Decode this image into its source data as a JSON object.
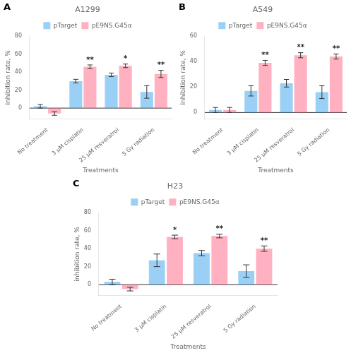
{
  "chart_data": [
    {
      "type": "bar",
      "label": "A",
      "title": "A1299",
      "xlabel": "Treatments",
      "ylabel": "inhibition rate, %",
      "categories": [
        "No treatment",
        "3 µM cisplatin",
        "25 µM resveratrol",
        "5 Gy radiation"
      ],
      "series": [
        {
          "name": "pTarget",
          "values": [
            2,
            30,
            37,
            18
          ],
          "errors": [
            2,
            2,
            2,
            7
          ]
        },
        {
          "name": "pE9NS.G45α",
          "values": [
            -6,
            46,
            47,
            38
          ],
          "errors": [
            2,
            2,
            2,
            4
          ],
          "annotations": [
            null,
            "**",
            "*",
            "**"
          ]
        }
      ],
      "ylim": [
        -12,
        80
      ],
      "yticks": [
        0,
        20,
        40,
        60,
        80
      ],
      "grid": false,
      "legend": "top"
    },
    {
      "type": "bar",
      "label": "B",
      "title": "A549",
      "xlabel": "Treatments",
      "ylabel": "inhibition rate, %",
      "categories": [
        "No treatment",
        "3 µM cisplatin",
        "25 µM resveratrol",
        "5 Gy radiation"
      ],
      "series": [
        {
          "name": "pTarget",
          "values": [
            2,
            17,
            23,
            16
          ],
          "errors": [
            2,
            4,
            3,
            5
          ]
        },
        {
          "name": "pE9NS.G45α",
          "values": [
            2,
            39,
            45,
            44
          ],
          "errors": [
            2,
            2,
            2,
            2
          ],
          "annotations": [
            null,
            "**",
            "**",
            "**"
          ]
        }
      ],
      "ylim": [
        -5,
        60
      ],
      "yticks": [
        0,
        20,
        40,
        60
      ],
      "grid": false,
      "legend": "top"
    },
    {
      "type": "bar",
      "label": "C",
      "title": "H23",
      "xlabel": "Treatments",
      "ylabel": "inhibition rate, %",
      "categories": [
        "No treatment",
        "3 µM cisplatin",
        "25 µM resveratrol",
        "5 Gy radiation"
      ],
      "series": [
        {
          "name": "pTarget",
          "values": [
            3,
            27,
            35,
            15
          ],
          "errors": [
            3,
            7,
            3,
            7
          ]
        },
        {
          "name": "pE9NS.G45α",
          "values": [
            -5,
            53,
            54,
            40
          ],
          "errors": [
            2,
            2,
            2,
            3
          ],
          "annotations": [
            null,
            "*",
            "**",
            "**"
          ]
        }
      ],
      "ylim": [
        -12,
        80
      ],
      "yticks": [
        0,
        20,
        40,
        60,
        80
      ],
      "grid": false,
      "legend": "top"
    }
  ]
}
